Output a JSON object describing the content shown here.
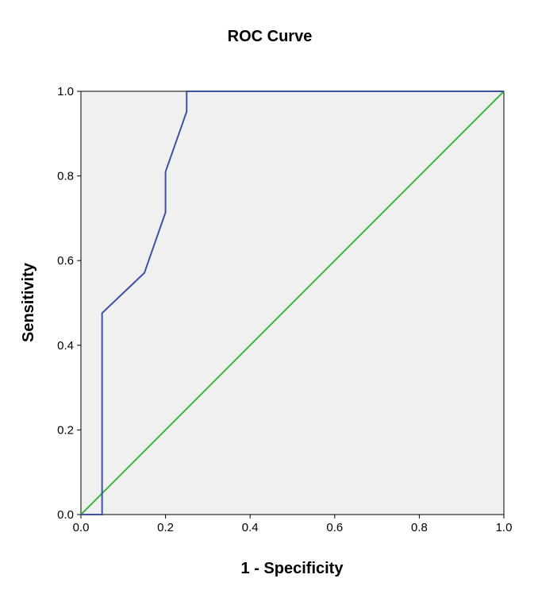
{
  "chart_data": {
    "type": "line",
    "title": "ROC Curve",
    "xlabel": "1 - Specificity",
    "ylabel": "Sensitivity",
    "xlim": [
      0,
      1
    ],
    "ylim": [
      0,
      1
    ],
    "x_ticks": [
      "0.0",
      "0.2",
      "0.4",
      "0.6",
      "0.8",
      "1.0"
    ],
    "y_ticks": [
      "0.0",
      "0.2",
      "0.4",
      "0.6",
      "0.8",
      "1.0"
    ],
    "grid": false,
    "legend": "none",
    "series": [
      {
        "color": "#3f51a5",
        "x": [
          0.0,
          0.05,
          0.05,
          0.15,
          0.2,
          0.2,
          0.25,
          0.25,
          1.0
        ],
        "y": [
          0.0,
          0.0,
          0.476,
          0.571,
          0.714,
          0.81,
          0.952,
          1.0,
          1.0
        ]
      },
      {
        "color": "#3db23d",
        "x": [
          0.0,
          1.0
        ],
        "y": [
          0.0,
          1.0
        ]
      }
    ],
    "colors": {
      "plot_background": "#f0f0f0",
      "frame": "#000000"
    }
  }
}
